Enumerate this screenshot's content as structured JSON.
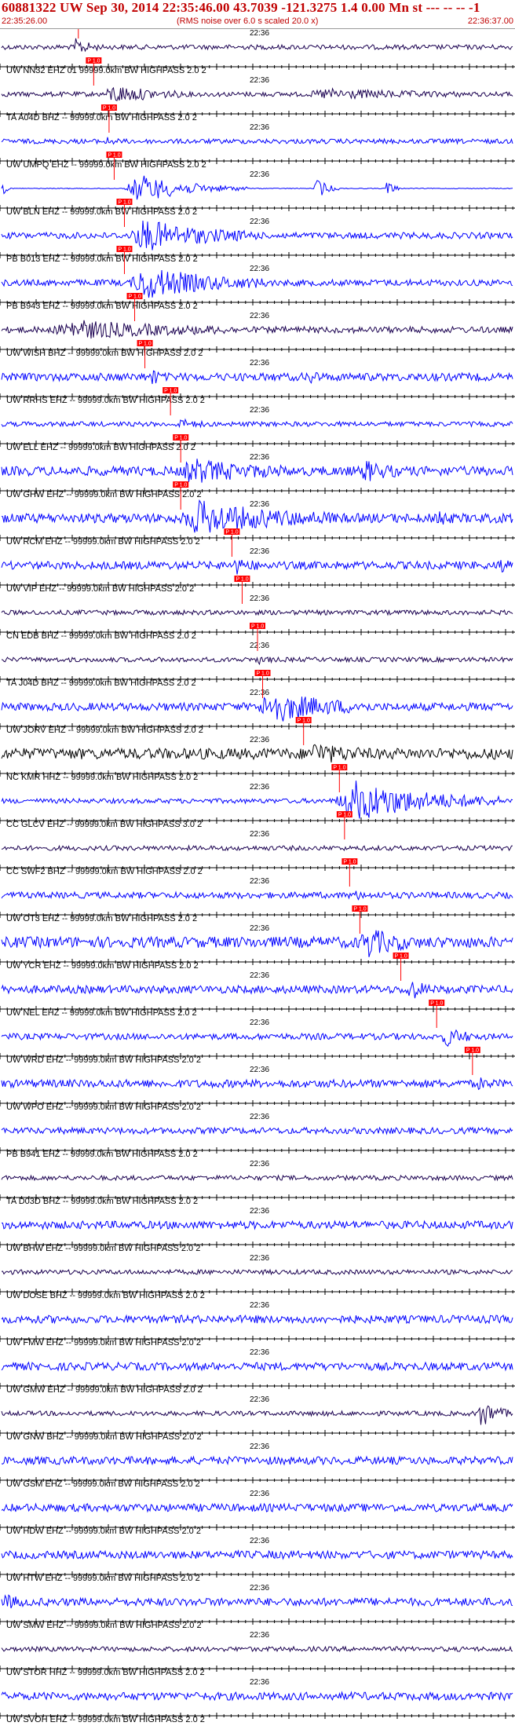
{
  "header": {
    "title": "60881322 UW Sep 30, 2014 22:35:46.00   43.7039 -121.3275  1.4 0.00 Mn st --- -- -- -1",
    "start_time": "22:35:26.00",
    "end_time": "22:36:37.00",
    "noise_note": "(RMS noise over 6.0 s scaled 20.0 x)"
  },
  "time_mark_label": "22:36",
  "pick_label": "P 1.0",
  "colors": {
    "title": "#c00000",
    "trace_blue": "#0000ff",
    "trace_dark": "#1a0050",
    "trace_black": "#000000",
    "pick": "#ff0000",
    "axis": "#000000"
  },
  "traces": [
    {
      "label": "UW NN32 EHZ 01 99999.0km BW  HIGHPASS  2.0  2",
      "color": "dark",
      "pick": 0.15,
      "event": [
        {
          "s": 0.14,
          "e": 0.19,
          "a": 10
        }
      ],
      "noise": 3
    },
    {
      "label": "TA A04D BHZ -- 99999.0km BW  HIGHPASS  2.0  2",
      "color": "dark",
      "pick": 0.18,
      "event": [
        {
          "s": 0.2,
          "e": 0.36,
          "a": 10
        },
        {
          "s": 0.6,
          "e": 0.9,
          "a": 5
        }
      ],
      "noise": 3
    },
    {
      "label": "UW UMPQ EHZ -- 99999.0km BW  HIGHPASS  2.0  2",
      "color": "blue",
      "pick": 0.21,
      "event": [
        {
          "s": 0.2,
          "e": 0.23,
          "a": 4
        }
      ],
      "noise": 3
    },
    {
      "label": "UW BLN EHZ -- 99999.0km BW  HIGHPASS  2.0  2",
      "color": "blue",
      "pick": 0.22,
      "event": [
        {
          "s": 0.24,
          "e": 0.48,
          "a": 18
        },
        {
          "s": 0.61,
          "e": 0.66,
          "a": 14
        },
        {
          "s": 0.75,
          "e": 0.78,
          "a": 12
        },
        {
          "s": 0.0,
          "e": 0.02,
          "a": 8
        }
      ],
      "noise": 0.5
    },
    {
      "label": "PB B013 EHZ -- 99999.0km BW  HIGHPASS  2.0  2",
      "color": "blue",
      "pick": 0.24,
      "event": [
        {
          "s": 0.25,
          "e": 0.5,
          "a": 18
        }
      ],
      "noise": 4
    },
    {
      "label": "PB B943 EHZ -- 99999.0km BW  HIGHPASS  2.0  2",
      "color": "blue",
      "pick": 0.24,
      "event": [
        {
          "s": 0.25,
          "e": 0.52,
          "a": 18
        }
      ],
      "noise": 4
    },
    {
      "label": "UW WISH BHZ -- 99999.0km BW  HIGHPASS  2.0  2",
      "color": "dark",
      "pick": 0.26,
      "event": [
        {
          "s": 0.1,
          "e": 0.45,
          "a": 10
        }
      ],
      "noise": 4
    },
    {
      "label": "UW RRHS EHZ -- 99999.0km BW  HIGHPASS  2.0  2",
      "color": "blue",
      "pick": 0.28,
      "event": [
        {
          "s": 0.29,
          "e": 0.31,
          "a": 12
        },
        {
          "s": 0.6,
          "e": 0.62,
          "a": 12
        }
      ],
      "noise": 5
    },
    {
      "label": "UW ELL EHZ -- 99999.0km BW  HIGHPASS  2.0  2",
      "color": "blue",
      "pick": 0.33,
      "event": [
        {
          "s": 0.34,
          "e": 0.4,
          "a": 5
        }
      ],
      "noise": 3
    },
    {
      "label": "UW GHW EHZ -- 99999.0km BW  HIGHPASS  2.0  2",
      "color": "blue",
      "pick": 0.35,
      "event": [
        {
          "s": 0.35,
          "e": 0.55,
          "a": 12
        },
        {
          "s": 0.7,
          "e": 0.78,
          "a": 10
        }
      ],
      "noise": 6
    },
    {
      "label": "UW RCM EHZ -- 99999.0km BW  HIGHPASS  2.0  2",
      "color": "blue",
      "pick": 0.35,
      "event": [
        {
          "s": 0.35,
          "e": 0.65,
          "a": 18
        },
        {
          "s": 0.84,
          "e": 0.87,
          "a": 16
        }
      ],
      "noise": 6
    },
    {
      "label": "UW VIP EHZ -- 99999.0km BW  HIGHPASS  2.0  2",
      "color": "blue",
      "pick": 0.45,
      "event": [
        {
          "s": 0.45,
          "e": 0.5,
          "a": 8
        },
        {
          "s": 0.97,
          "e": 1.0,
          "a": 8
        }
      ],
      "noise": 5
    },
    {
      "label": "CN EDB BHZ -- 99999.0km BW  HIGHPASS  2.0  2",
      "color": "dark",
      "pick": 0.47,
      "event": [],
      "noise": 3
    },
    {
      "label": "TA J04D BHZ -- 99999.0km BW  HIGHPASS  2.0  2",
      "color": "dark",
      "pick": 0.5,
      "event": [
        {
          "s": 0.5,
          "e": 0.53,
          "a": 4
        }
      ],
      "noise": 3
    },
    {
      "label": "UW JORV EHZ -- 99999.0km BW  HIGHPASS  2.0  2",
      "color": "blue",
      "pick": 0.51,
      "event": [
        {
          "s": 0.5,
          "e": 0.72,
          "a": 18
        }
      ],
      "noise": 5
    },
    {
      "label": "NC KMR HHZ -- 99999.0km BW  HIGHPASS  2.0  2",
      "color": "black",
      "pick": 0.59,
      "event": [
        {
          "s": 0.6,
          "e": 0.7,
          "a": 10
        }
      ],
      "noise": 7
    },
    {
      "label": "CC GLCV EHZ -- 99999.0km BW  HIGHPASS  3.0  2",
      "color": "blue",
      "pick": 0.66,
      "event": [
        {
          "s": 0.65,
          "e": 0.98,
          "a": 24
        }
      ],
      "noise": 3
    },
    {
      "label": "CC SWF2 BHZ -- 99999.0km BW  HIGHPASS  2.0  2",
      "color": "dark",
      "pick": 0.67,
      "event": [],
      "noise": 3
    },
    {
      "label": "UW OT3 EHZ -- 99999.0km BW  HIGHPASS  2.0  2",
      "color": "blue",
      "pick": 0.68,
      "event": [
        {
          "s": 0.68,
          "e": 0.72,
          "a": 4
        }
      ],
      "noise": 4
    },
    {
      "label": "UW YCR EHZ -- 99999.0km BW  HIGHPASS  2.0  2",
      "color": "blue",
      "pick": 0.7,
      "event": [
        {
          "s": 0.7,
          "e": 0.8,
          "a": 16
        }
      ],
      "noise": 7
    },
    {
      "label": "UW NEL EHZ -- 99999.0km BW  HIGHPASS  2.0  2",
      "color": "blue",
      "pick": 0.78,
      "event": [
        {
          "s": 0.79,
          "e": 0.84,
          "a": 12
        }
      ],
      "noise": 5
    },
    {
      "label": "UW WRD EHZ -- 99999.0km BW  HIGHPASS  2.0  2",
      "color": "blue",
      "pick": 0.85,
      "event": [
        {
          "s": 0.86,
          "e": 0.93,
          "a": 10
        }
      ],
      "noise": 4
    },
    {
      "label": "UW WPO EHZ -- 99999.0km BW  HIGHPASS  2.0  2",
      "color": "blue",
      "pick": 0.92,
      "event": [
        {
          "s": 0.93,
          "e": 0.96,
          "a": 5
        }
      ],
      "noise": 5
    },
    {
      "label": "PB B941 EHZ -- 99999.0km BW  HIGHPASS  2.0  2",
      "color": "blue",
      "pick": null,
      "event": [],
      "noise": 4
    },
    {
      "label": "TA D03D BHZ -- 99999.0km BW  HIGHPASS  2.0  2",
      "color": "dark",
      "pick": null,
      "event": [],
      "noise": 3
    },
    {
      "label": "UW BHW EHZ -- 99999.0km BW  HIGHPASS  2.0  2",
      "color": "blue",
      "pick": null,
      "event": [],
      "noise": 5
    },
    {
      "label": "UW DOSE BHZ -- 99999.0km BW  HIGHPASS  2.0  2",
      "color": "dark",
      "pick": null,
      "event": [],
      "noise": 3
    },
    {
      "label": "UW FMW EHZ -- 99999.0km BW  HIGHPASS  2.0  2",
      "color": "blue",
      "pick": null,
      "event": [],
      "noise": 5
    },
    {
      "label": "UW GMW EHZ -- 99999.0km BW  HIGHPASS  2.0  2",
      "color": "blue",
      "pick": null,
      "event": [],
      "noise": 5
    },
    {
      "label": "UW GNW BHZ -- 99999.0km BW  HIGHPASS  2.0  2",
      "color": "dark",
      "pick": null,
      "event": [
        {
          "s": 0.93,
          "e": 0.99,
          "a": 18
        }
      ],
      "noise": 3
    },
    {
      "label": "UW GSM EHZ -- 99999.0km BW  HIGHPASS  2.0  2",
      "color": "blue",
      "pick": null,
      "event": [],
      "noise": 5
    },
    {
      "label": "UW HDW EHZ -- 99999.0km BW  HIGHPASS  2.0  2",
      "color": "blue",
      "pick": null,
      "event": [],
      "noise": 5
    },
    {
      "label": "UW HTW EHZ -- 99999.0km BW  HIGHPASS  2.0  2",
      "color": "blue",
      "pick": null,
      "event": [],
      "noise": 5
    },
    {
      "label": "UW SMW EHZ -- 99999.0km BW  HIGHPASS  2.0  2",
      "color": "blue",
      "pick": null,
      "event": [
        {
          "s": 0.0,
          "e": 0.05,
          "a": 6
        }
      ],
      "noise": 5
    },
    {
      "label": "UW STOR HHZ -- 99999.0km BW  HIGHPASS  2.0  2",
      "color": "dark",
      "pick": null,
      "event": [],
      "noise": 3
    },
    {
      "label": "UW SVOH EHZ -- 99999.0km BW  HIGHPASS  2.0  2",
      "color": "blue",
      "pick": null,
      "event": [],
      "noise": 5
    },
    {
      "label": "",
      "color": "blue",
      "pick": null,
      "event": [],
      "noise": 5
    }
  ]
}
